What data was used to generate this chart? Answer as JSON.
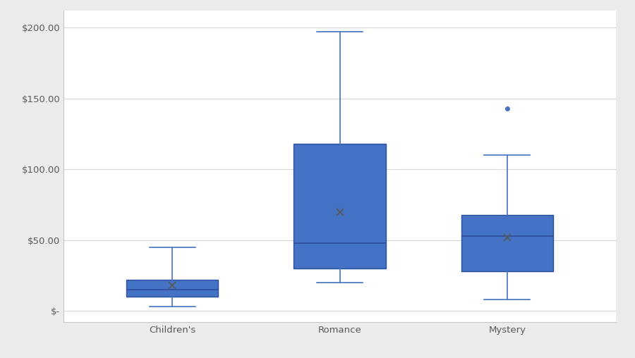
{
  "categories": [
    "Children's",
    "Romance",
    "Mystery"
  ],
  "box_color": "#4472C4",
  "box_edge_color": "#2E4F9C",
  "whisker_color": "#4472C4",
  "median_color": "#2E4F9C",
  "mean_color": "#595959",
  "flier_color": "#4472C4",
  "grid_color": "#D9D9D9",
  "tick_label_color": "#595959",
  "tick_fontsize": 9.5,
  "boxes": [
    {
      "q1": 10,
      "median": 15,
      "q3": 22,
      "mean": 18,
      "whislo": 3,
      "whishi": 45,
      "fliers": []
    },
    {
      "q1": 30,
      "median": 48,
      "q3": 118,
      "mean": 70,
      "whislo": 20,
      "whishi": 197,
      "fliers": []
    },
    {
      "q1": 28,
      "median": 53,
      "q3": 68,
      "mean": 52,
      "whislo": 8,
      "whishi": 110,
      "fliers": [
        143
      ]
    }
  ],
  "ylim": [
    -8,
    212
  ],
  "yticks": [
    0,
    50,
    100,
    150,
    200
  ],
  "ytick_labels": [
    "$-",
    "$50.00",
    "$100.00",
    "$150.00",
    "$200.00"
  ],
  "fig_bg": "#EBEBEB",
  "plot_bg": "#FFFFFF",
  "border_color": "#C8C8C8",
  "positions": [
    1,
    2,
    3
  ],
  "box_width": 0.55,
  "xlim": [
    0.35,
    3.65
  ]
}
